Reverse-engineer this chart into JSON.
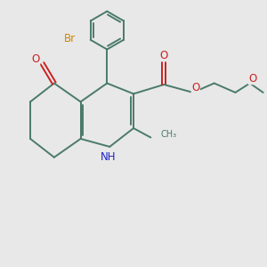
{
  "bg_color": "#e8e8e8",
  "bond_color": "#4a7a6a",
  "bond_width": 1.4,
  "N_color": "#2020cc",
  "O_color": "#cc2020",
  "Br_color": "#cc8800",
  "text_fontsize": 8.5,
  "figsize": [
    3.0,
    3.0
  ],
  "dpi": 100,
  "xlim": [
    0,
    10
  ],
  "ylim": [
    0,
    10
  ]
}
